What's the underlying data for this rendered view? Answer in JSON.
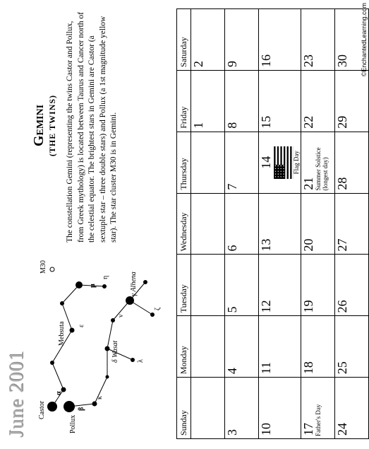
{
  "title": "June 2001",
  "constellation": {
    "name": "Gemini",
    "subtitle": "(THE TWINS)",
    "description": "The constellation Gemini (representing the twins Castor and Pollux, from Greek mythology) is located between Taurus and Cancer north of the celestial equator. The brightest stars in Gemini are Castor (a sextuple star – three double stars) and Pollux (a 1st magnitude yellow star). The star cluster M30 is in Gemini."
  },
  "calendar": {
    "headers": [
      "Sunday",
      "Monday",
      "Tuesday",
      "Wednesday",
      "Thursday",
      "Friday",
      "Saturday"
    ],
    "weeks": [
      [
        {
          "n": ""
        },
        {
          "n": ""
        },
        {
          "n": ""
        },
        {
          "n": ""
        },
        {
          "n": ""
        },
        {
          "n": "1"
        },
        {
          "n": "2"
        }
      ],
      [
        {
          "n": "3"
        },
        {
          "n": "4"
        },
        {
          "n": "5"
        },
        {
          "n": "6"
        },
        {
          "n": "7"
        },
        {
          "n": "8"
        },
        {
          "n": "9"
        }
      ],
      [
        {
          "n": "10"
        },
        {
          "n": "11"
        },
        {
          "n": "12"
        },
        {
          "n": "13"
        },
        {
          "n": "14",
          "flag": true,
          "ev": "Flag Day"
        },
        {
          "n": "15"
        },
        {
          "n": "16"
        }
      ],
      [
        {
          "n": "17",
          "ev": "Father's Day"
        },
        {
          "n": "18"
        },
        {
          "n": "19"
        },
        {
          "n": "20"
        },
        {
          "n": "21",
          "ev": "Summer Solstice (longest day)"
        },
        {
          "n": "22"
        },
        {
          "n": "23"
        }
      ],
      [
        {
          "n": "24"
        },
        {
          "n": "25"
        },
        {
          "n": "26"
        },
        {
          "n": "27"
        },
        {
          "n": "28"
        },
        {
          "n": "29"
        },
        {
          "n": "30"
        }
      ]
    ]
  },
  "stars": {
    "labels": {
      "castor": "Castor",
      "pollux": "Pollux",
      "mebsuta": "Mebsuta",
      "m30": "M30",
      "wasat": "Wasat",
      "alhena": "Alhena"
    }
  },
  "copyright": "©EnchantedLearning.com"
}
